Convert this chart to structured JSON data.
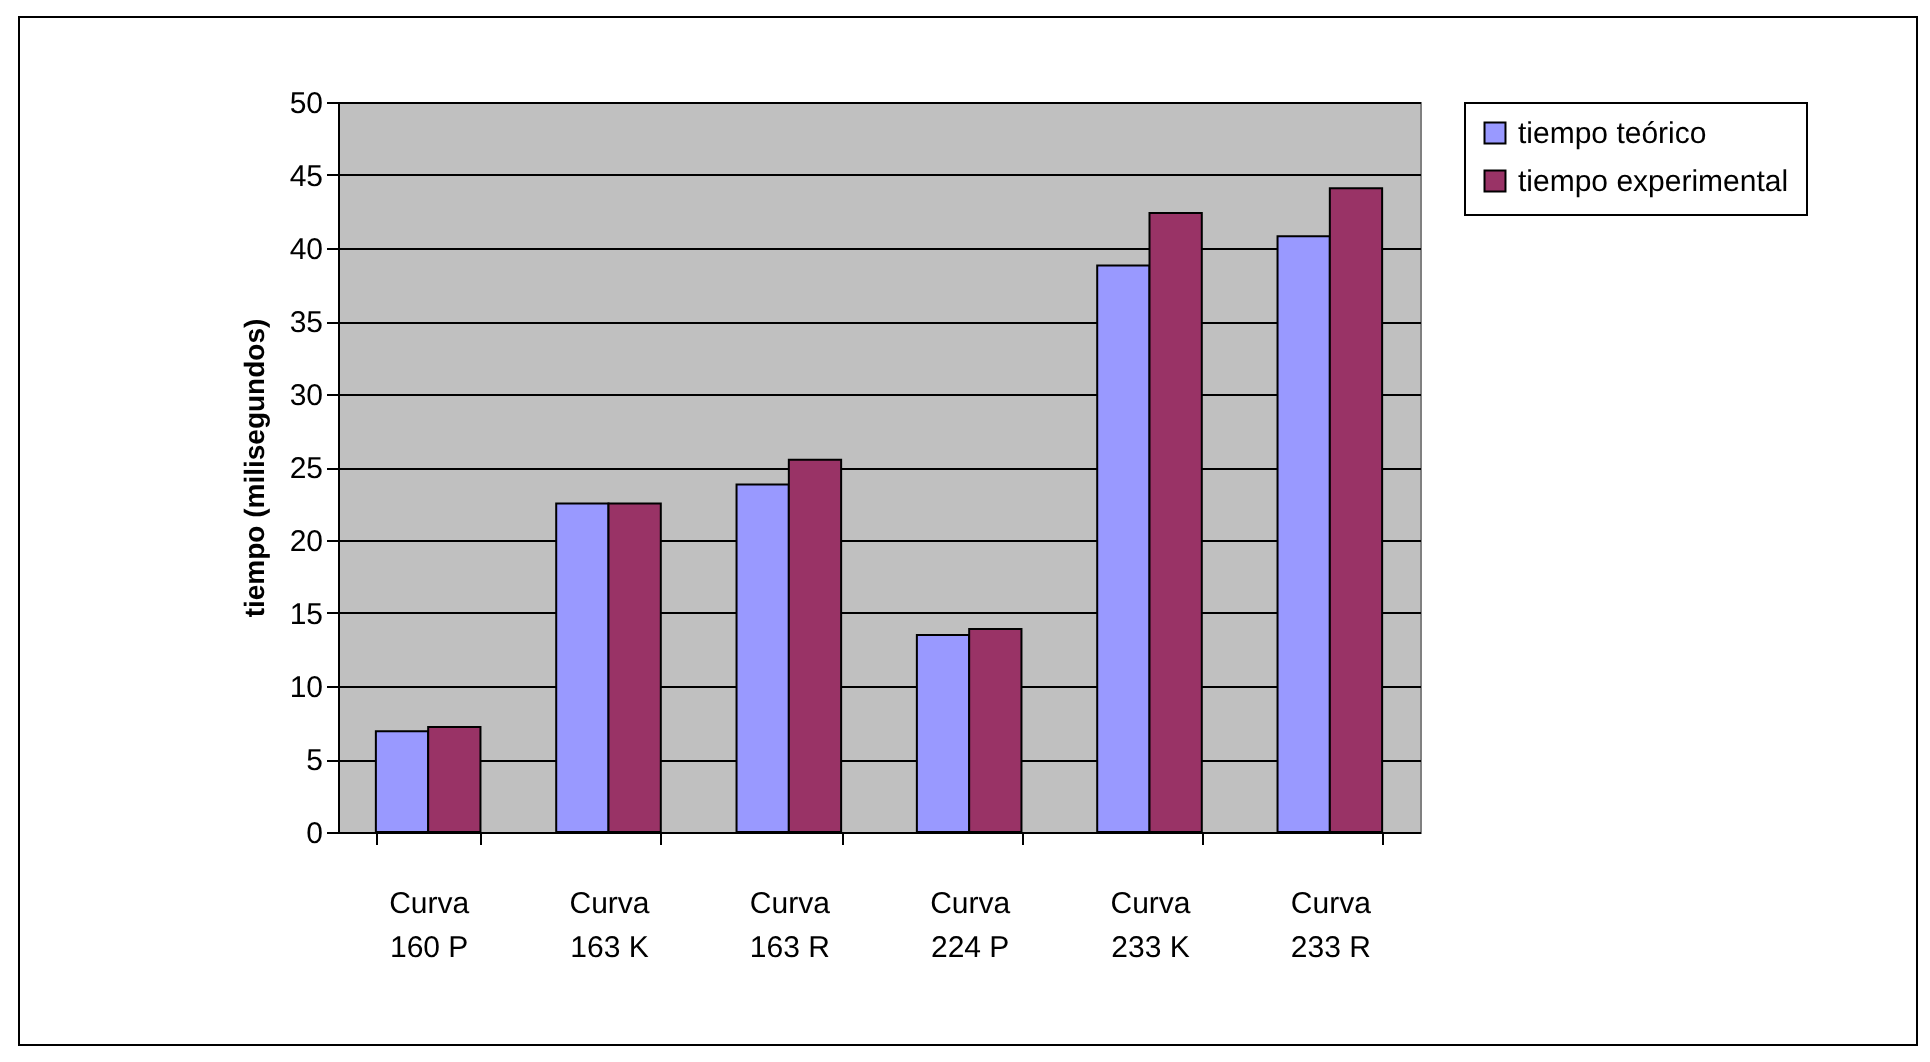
{
  "chart_data": {
    "type": "bar",
    "ylabel": "tiempo (milisegundos)",
    "categories": [
      "Curva 160 P",
      "Curva 163 K",
      "Curva 163 R",
      "Curva 224 P",
      "Curva 233 K",
      "Curva 233 R"
    ],
    "series": [
      {
        "name": "tiempo teórico",
        "color": "#9999ff",
        "values": [
          6.9,
          22.5,
          23.8,
          13.5,
          38.8,
          40.8
        ]
      },
      {
        "name": "tiempo experimental",
        "color": "#993366",
        "values": [
          7.2,
          22.5,
          25.5,
          13.9,
          42.4,
          44.1
        ]
      }
    ],
    "ylim": [
      0,
      50
    ],
    "yticks": [
      0,
      5,
      10,
      15,
      20,
      25,
      30,
      35,
      40,
      45,
      50
    ],
    "grid": "y",
    "legend": "right"
  }
}
